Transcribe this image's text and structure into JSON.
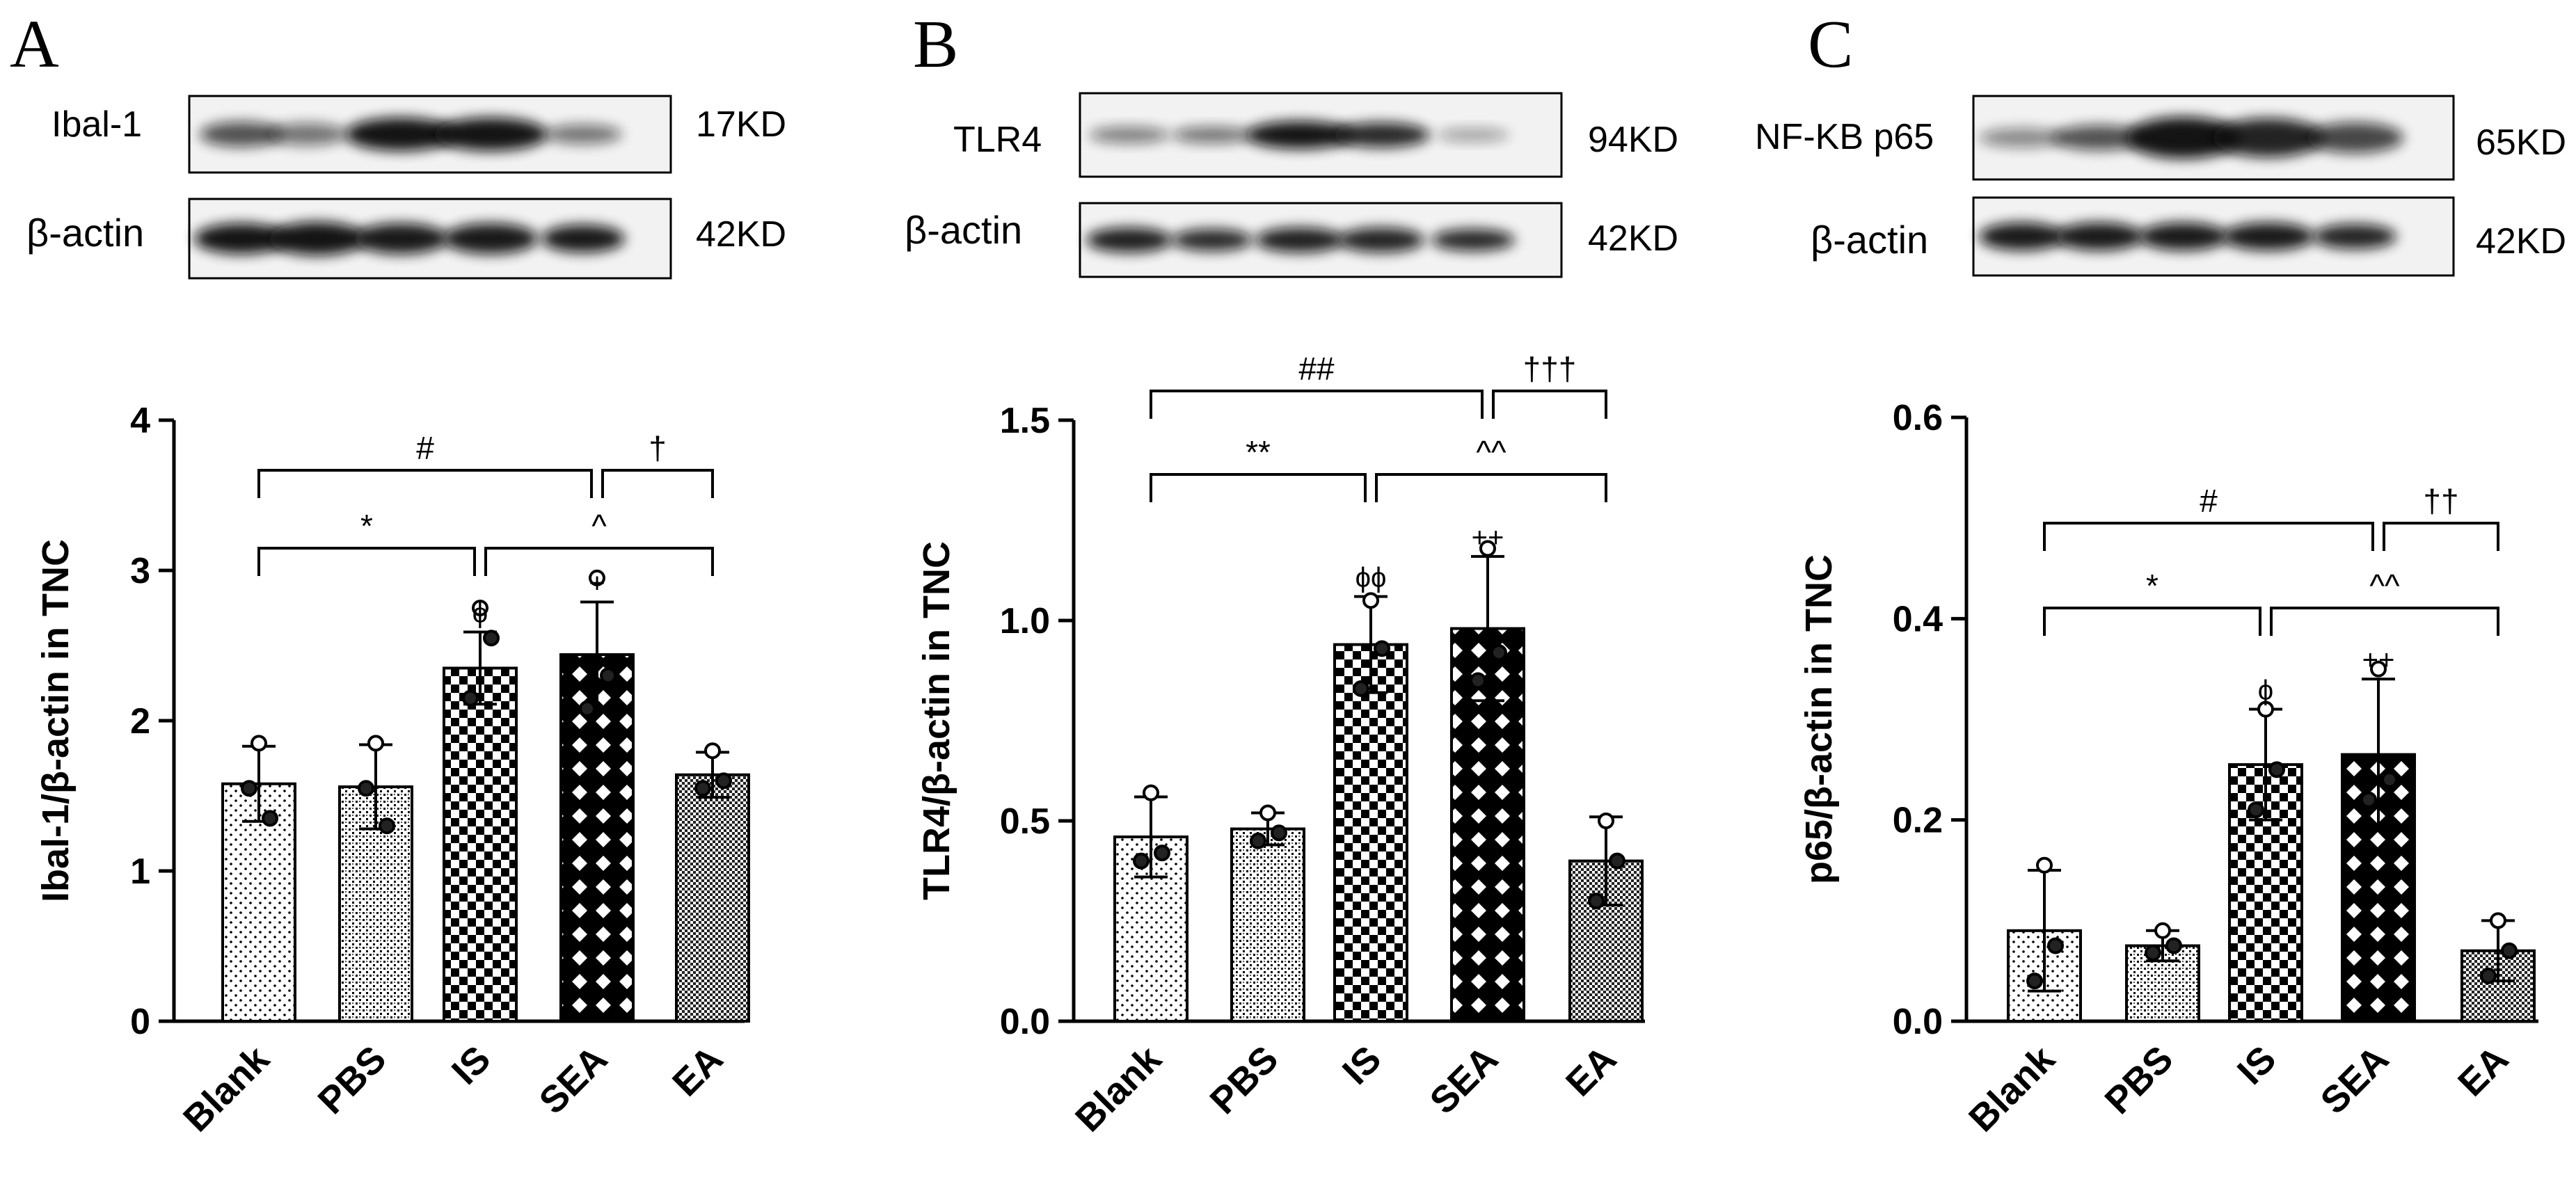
{
  "colors": {
    "ink": "#000000",
    "bar_fill": "#ffffff",
    "band": "#111111"
  },
  "panels": [
    {
      "letter": "A",
      "blot": {
        "rows": [
          {
            "label": "Ibal-1",
            "kd": "17KD"
          },
          {
            "label": "β-actin",
            "kd": "42KD"
          }
        ]
      }
    },
    {
      "letter": "B",
      "blot": {
        "rows": [
          {
            "label": "TLR4",
            "kd": "94KD"
          },
          {
            "label": "β-actin",
            "kd": "42KD"
          }
        ]
      }
    },
    {
      "letter": "C",
      "blot": {
        "rows": [
          {
            "label": "NF-KB p65",
            "kd": "65KD"
          },
          {
            "label": "β-actin",
            "kd": "42KD"
          }
        ]
      }
    }
  ],
  "chart_data": [
    {
      "type": "bar",
      "panel": "A",
      "categories": [
        "Blank",
        "PBS",
        "IS",
        "SEA",
        "EA"
      ],
      "values": [
        1.58,
        1.56,
        2.35,
        2.44,
        1.64
      ],
      "errors": [
        0.25,
        0.28,
        0.24,
        0.35,
        0.15
      ],
      "points": [
        [
          1.85,
          1.35,
          1.55
        ],
        [
          1.85,
          1.3,
          1.55
        ],
        [
          2.75,
          2.55,
          2.15
        ],
        [
          2.95,
          2.3,
          2.08
        ],
        [
          1.8,
          1.6,
          1.55
        ]
      ],
      "patterns": [
        "dots",
        "dense",
        "checker",
        "diamond",
        "fine"
      ],
      "ylabel": "Ibal-1/β-actin in TNC",
      "ylim": [
        0,
        4
      ],
      "yticks": [
        "0",
        "1",
        "2",
        "3",
        "4"
      ],
      "bar_marks": [
        "",
        "",
        "ϕ",
        "+",
        ""
      ],
      "brackets": [
        {
          "from": "Blank",
          "to": "IS",
          "label": "*"
        },
        {
          "from": "IS",
          "to": "EA",
          "label": "^"
        },
        {
          "from": "Blank",
          "to": "SEA",
          "label": "#"
        },
        {
          "from": "SEA",
          "to": "EA",
          "label": "†"
        }
      ]
    },
    {
      "type": "bar",
      "panel": "B",
      "categories": [
        "Blank",
        "PBS",
        "IS",
        "SEA",
        "EA"
      ],
      "values": [
        0.46,
        0.48,
        0.94,
        0.98,
        0.4
      ],
      "errors": [
        0.1,
        0.04,
        0.12,
        0.18,
        0.11
      ],
      "points": [
        [
          0.57,
          0.42,
          0.4
        ],
        [
          0.52,
          0.47,
          0.45
        ],
        [
          1.05,
          0.93,
          0.83
        ],
        [
          1.18,
          0.92,
          0.85
        ],
        [
          0.5,
          0.4,
          0.3
        ]
      ],
      "patterns": [
        "dots",
        "dense",
        "checker",
        "diamond",
        "fine"
      ],
      "ylabel": "TLR4/β-actin in TNC",
      "ylim": [
        0,
        1.5
      ],
      "yticks": [
        "0.0",
        "0.5",
        "1.0",
        "1.5"
      ],
      "bar_marks": [
        "",
        "",
        "ϕϕ",
        "++",
        ""
      ],
      "brackets": [
        {
          "from": "Blank",
          "to": "IS",
          "label": "**"
        },
        {
          "from": "IS",
          "to": "EA",
          "label": "^^"
        },
        {
          "from": "Blank",
          "to": "SEA",
          "label": "##"
        },
        {
          "from": "SEA",
          "to": "EA",
          "label": "†††"
        }
      ]
    },
    {
      "type": "bar",
      "panel": "C",
      "categories": [
        "Blank",
        "PBS",
        "IS",
        "SEA",
        "EA"
      ],
      "values": [
        0.09,
        0.075,
        0.255,
        0.265,
        0.07
      ],
      "errors": [
        0.06,
        0.015,
        0.055,
        0.075,
        0.03
      ],
      "points": [
        [
          0.155,
          0.075,
          0.04
        ],
        [
          0.09,
          0.075,
          0.068
        ],
        [
          0.31,
          0.25,
          0.21
        ],
        [
          0.35,
          0.24,
          0.22
        ],
        [
          0.1,
          0.07,
          0.045
        ]
      ],
      "patterns": [
        "dots",
        "dense",
        "checker",
        "diamond",
        "fine"
      ],
      "ylabel": "p65/β-actin in TNC",
      "ylim": [
        0,
        0.6
      ],
      "yticks": [
        "0.0",
        "0.2",
        "0.4",
        "0.6"
      ],
      "bar_marks": [
        "",
        "",
        "ϕ",
        "++",
        ""
      ],
      "brackets": [
        {
          "from": "Blank",
          "to": "IS",
          "label": "*"
        },
        {
          "from": "IS",
          "to": "EA",
          "label": "^^"
        },
        {
          "from": "Blank",
          "to": "SEA",
          "label": "#"
        },
        {
          "from": "SEA",
          "to": "EA",
          "label": "††"
        }
      ]
    }
  ]
}
